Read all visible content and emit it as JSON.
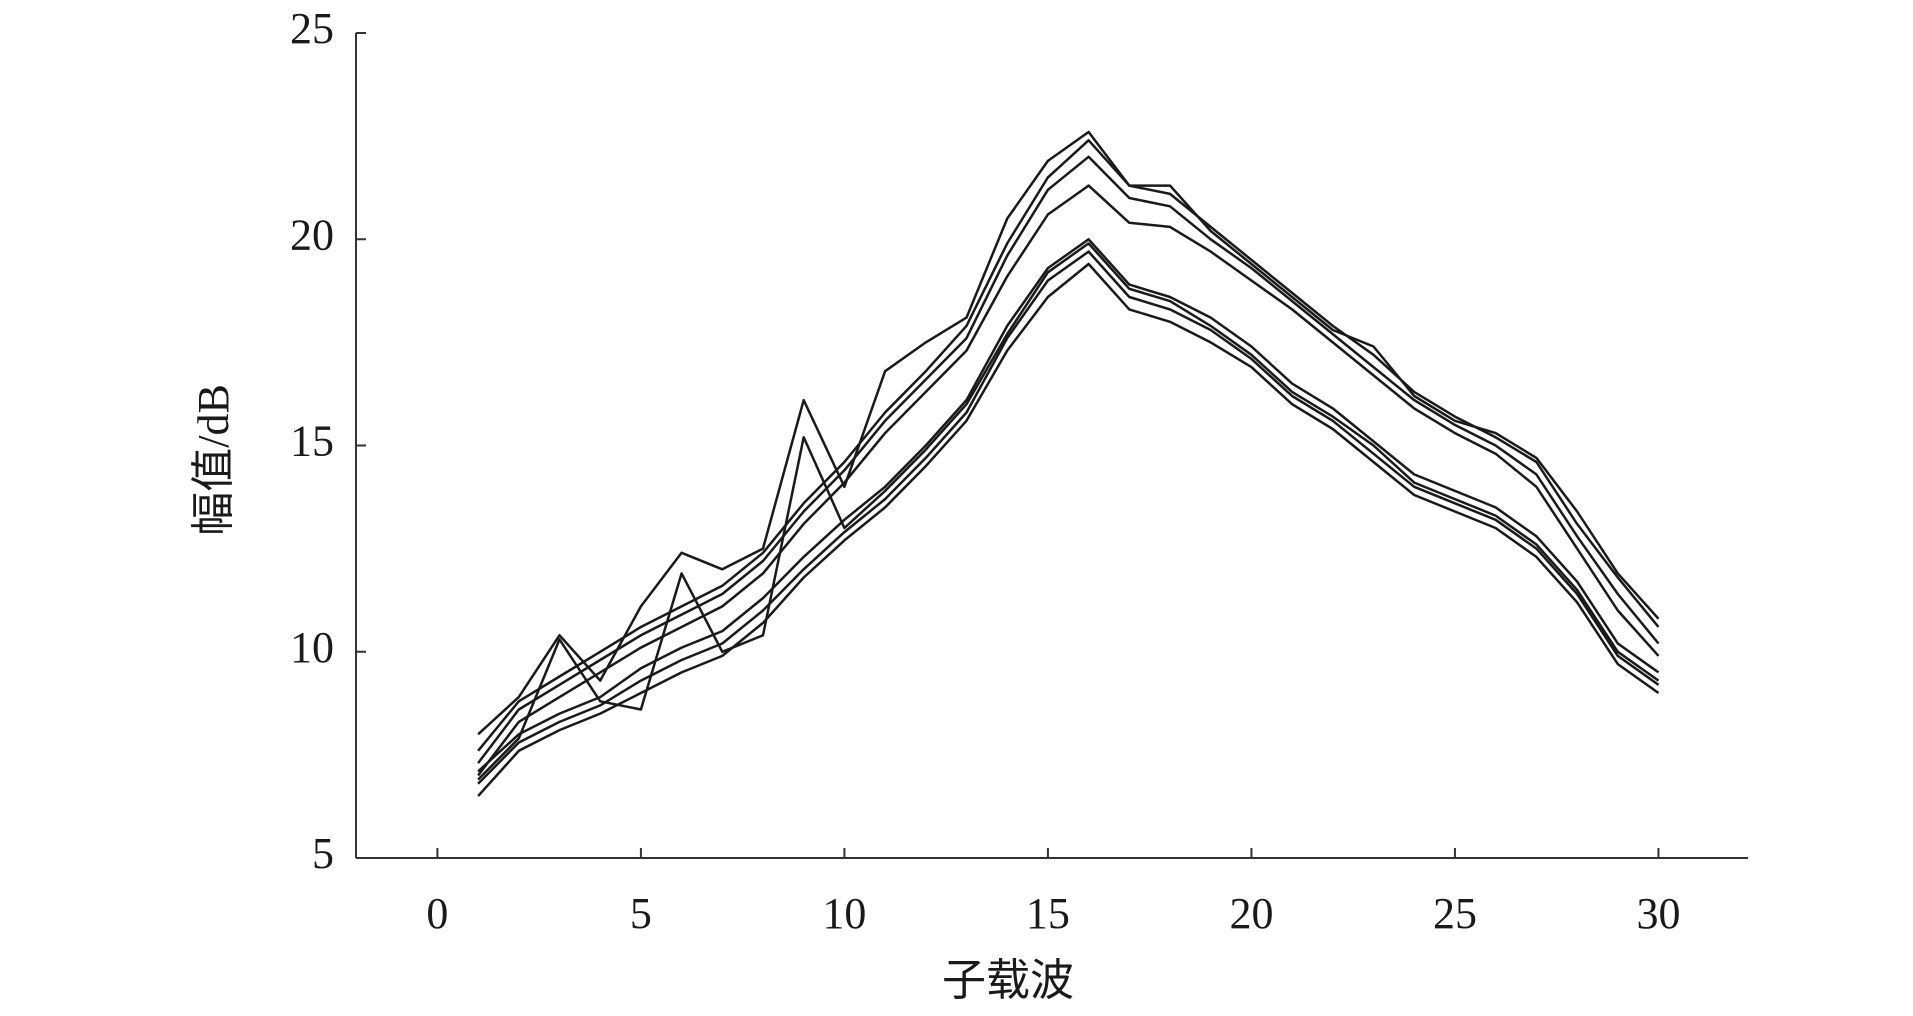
{
  "chart_data": {
    "type": "line",
    "xlabel": "子载波",
    "ylabel": "幅值/dB",
    "x": [
      1,
      2,
      3,
      4,
      5,
      6,
      7,
      8,
      9,
      10,
      11,
      12,
      13,
      14,
      15,
      16,
      17,
      18,
      19,
      20,
      21,
      22,
      23,
      24,
      25,
      26,
      27,
      28,
      29,
      30
    ],
    "series": [
      {
        "color": "#1a1a1a",
        "values": [
          7.6,
          8.8,
          9.4,
          10.0,
          10.6,
          11.1,
          11.6,
          12.4,
          13.6,
          14.6,
          15.8,
          16.8,
          17.9,
          19.9,
          21.5,
          22.4,
          21.3,
          21.1,
          20.3,
          19.5,
          18.7,
          17.9,
          17.2,
          16.3,
          15.7,
          15.2,
          14.6,
          13.1,
          11.8,
          10.6
        ]
      },
      {
        "color": "#1a1a1a",
        "values": [
          7.3,
          8.6,
          9.2,
          9.8,
          10.4,
          10.9,
          11.4,
          12.2,
          13.4,
          14.4,
          15.6,
          16.6,
          17.6,
          19.6,
          21.2,
          22.0,
          21.0,
          20.8,
          20.0,
          19.3,
          18.5,
          17.7,
          16.9,
          16.1,
          15.5,
          15.0,
          14.3,
          12.8,
          11.4,
          10.2
        ]
      },
      {
        "color": "#1a1a1a",
        "values": [
          7.0,
          8.3,
          8.9,
          9.5,
          10.1,
          10.6,
          11.1,
          11.9,
          13.1,
          14.1,
          15.3,
          16.3,
          17.3,
          19.1,
          20.6,
          21.3,
          20.4,
          20.3,
          19.7,
          19.0,
          18.3,
          17.5,
          16.7,
          15.9,
          15.3,
          14.8,
          14.0,
          12.5,
          11.0,
          9.9
        ]
      },
      {
        "color": "#1a1a1a",
        "values": [
          8.0,
          8.9,
          10.4,
          9.3,
          11.1,
          12.4,
          12.0,
          12.5,
          16.1,
          14.0,
          16.8,
          17.5,
          18.1,
          20.5,
          21.9,
          22.6,
          21.3,
          21.3,
          20.2,
          19.4,
          18.6,
          17.8,
          17.4,
          16.2,
          15.6,
          15.3,
          14.7,
          13.4,
          11.9,
          10.8
        ]
      },
      {
        "color": "#1a1a1a",
        "values": [
          7.1,
          8.0,
          8.5,
          8.9,
          9.6,
          10.1,
          10.5,
          11.3,
          12.3,
          13.2,
          14.0,
          15.0,
          16.1,
          17.9,
          19.3,
          20.0,
          18.9,
          18.6,
          18.1,
          17.4,
          16.5,
          15.9,
          15.1,
          14.3,
          13.9,
          13.5,
          12.8,
          11.7,
          10.2,
          9.5
        ]
      },
      {
        "color": "#1a1a1a",
        "values": [
          6.8,
          7.8,
          8.3,
          8.7,
          9.3,
          9.8,
          10.2,
          11.0,
          12.0,
          12.9,
          13.7,
          14.7,
          15.8,
          17.6,
          19.0,
          19.7,
          18.6,
          18.3,
          17.8,
          17.1,
          16.2,
          15.6,
          14.8,
          14.0,
          13.6,
          13.2,
          12.5,
          11.4,
          9.9,
          9.2
        ]
      },
      {
        "color": "#1a1a1a",
        "values": [
          6.5,
          7.6,
          8.1,
          8.5,
          9.0,
          9.5,
          9.9,
          10.7,
          11.8,
          12.7,
          13.5,
          14.5,
          15.6,
          17.3,
          18.6,
          19.4,
          18.3,
          18.0,
          17.5,
          16.9,
          16.0,
          15.4,
          14.6,
          13.8,
          13.4,
          13.0,
          12.3,
          11.2,
          9.7,
          9.0
        ]
      },
      {
        "color": "#1a1a1a",
        "values": [
          6.9,
          7.9,
          10.3,
          8.8,
          8.6,
          11.9,
          10.0,
          10.4,
          15.2,
          13.0,
          13.9,
          14.9,
          16.0,
          17.7,
          19.2,
          19.9,
          18.8,
          18.5,
          17.9,
          17.2,
          16.3,
          15.7,
          15.0,
          14.1,
          13.7,
          13.3,
          12.6,
          11.5,
          10.0,
          9.3
        ]
      }
    ],
    "xlim": [
      -2,
      32.2
    ],
    "ylim": [
      5,
      25
    ],
    "xticks": [
      0,
      5,
      10,
      15,
      20,
      25,
      30
    ],
    "yticks": [
      5,
      10,
      15,
      20,
      25
    ]
  }
}
